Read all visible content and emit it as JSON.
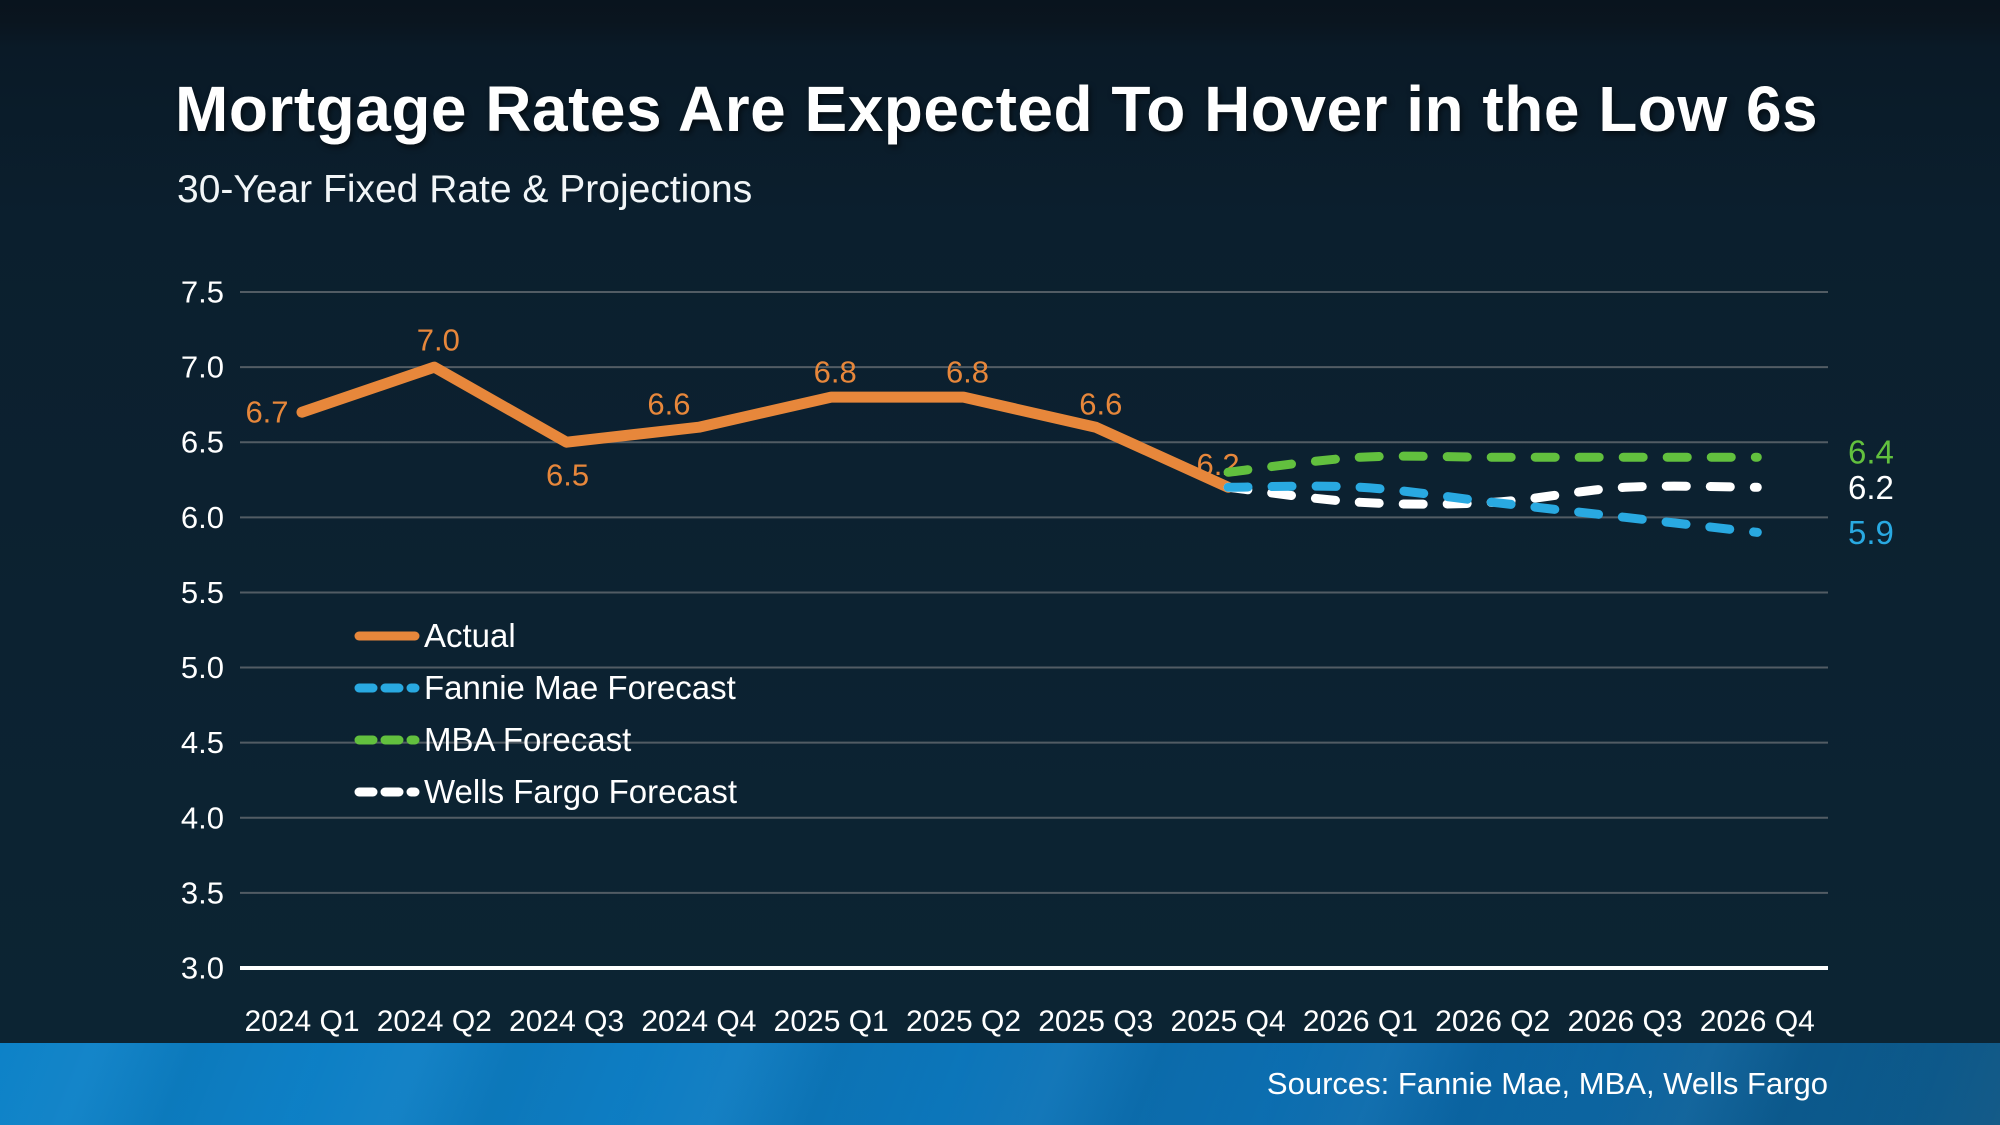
{
  "page": {
    "title": "Mortgage Rates Are Expected To Hover in the Low 6s",
    "subtitle": "30-Year Fixed Rate & Projections",
    "source": "Sources: Fannie Mae, MBA, Wells Fargo"
  },
  "colors": {
    "background": "#0b2130",
    "gridline": "#525c64",
    "axis_line": "#ffffff",
    "text": "#ffffff",
    "actual": "#e7873b",
    "fannie_mae": "#29a9e1",
    "mba": "#62c03e",
    "wells_fargo": "#ffffff",
    "source_bar": "#0d7cc2"
  },
  "legend": {
    "items": [
      {
        "label": "Actual",
        "color": "#e7873b",
        "style": "solid"
      },
      {
        "label": "Fannie Mae Forecast",
        "color": "#29a9e1",
        "style": "dashed"
      },
      {
        "label": "MBA Forecast",
        "color": "#62c03e",
        "style": "dashed"
      },
      {
        "label": "Wells Fargo Forecast",
        "color": "#ffffff",
        "style": "dashed"
      }
    ]
  },
  "chart_data": {
    "type": "line",
    "title": "30-Year Fixed Rate & Projections",
    "categories": [
      "2024 Q1",
      "2024 Q2",
      "2024 Q3",
      "2024 Q4",
      "2025 Q1",
      "2025 Q2",
      "2025 Q3",
      "2025 Q4",
      "2026 Q1",
      "2026 Q2",
      "2026 Q3",
      "2026 Q4"
    ],
    "ylim": [
      3.0,
      7.5
    ],
    "ytick_step": 0.5,
    "ytick_labels": [
      "3.0",
      "3.5",
      "4.0",
      "4.5",
      "5.0",
      "5.5",
      "6.0",
      "6.5",
      "7.0",
      "7.5"
    ],
    "grid": true,
    "legend_position": "inside-left",
    "series": [
      {
        "name": "Actual",
        "color": "#e7873b",
        "style": "solid",
        "start_category": "2024 Q1",
        "values": [
          6.7,
          7.0,
          6.5,
          6.6,
          6.8,
          6.8,
          6.6,
          6.2
        ],
        "point_labels": [
          "6.7",
          "7.0",
          "6.5",
          "6.6",
          "6.8",
          "6.8",
          "6.6",
          "6.2"
        ]
      },
      {
        "name": "Fannie Mae Forecast",
        "color": "#29a9e1",
        "style": "dashed",
        "start_category": "2025 Q4",
        "values": [
          6.2,
          6.2,
          6.1,
          6.0,
          5.9
        ],
        "end_label": "5.9"
      },
      {
        "name": "MBA Forecast",
        "color": "#62c03e",
        "style": "dashed",
        "start_category": "2025 Q4",
        "values": [
          6.3,
          6.4,
          6.4,
          6.4,
          6.4
        ],
        "end_label": "6.4"
      },
      {
        "name": "Wells Fargo Forecast",
        "color": "#ffffff",
        "style": "dashed",
        "start_category": "2025 Q4",
        "values": [
          6.2,
          6.1,
          6.1,
          6.2,
          6.2
        ],
        "end_label": "6.2"
      }
    ]
  }
}
